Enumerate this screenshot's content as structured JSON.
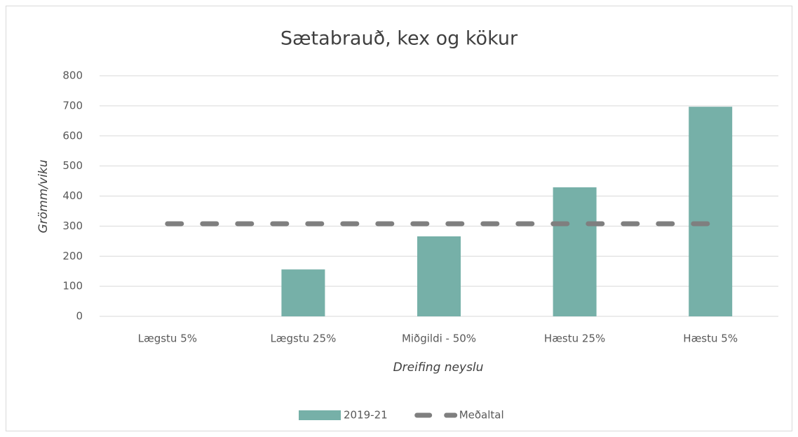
{
  "chart_data": {
    "type": "bar",
    "title": "Sætabrauð, kex og kökur",
    "y_axis_label": "Grömm/viku",
    "x_axis_label": "Dreifing neyslu",
    "categories": [
      "Lægstu 5%",
      "Lægstu 25%",
      "Miðgildi - 50%",
      "Hæstu 25%",
      "Hæstu 5%"
    ],
    "series": [
      {
        "name": "2019-21",
        "type": "bar",
        "color": "#76b0a8",
        "values": [
          0,
          156,
          266,
          429,
          697
        ]
      },
      {
        "name": "Meðaltal",
        "type": "line",
        "dashed": true,
        "color": "#7f7f7f",
        "values": [
          308,
          308,
          308,
          308,
          308
        ]
      }
    ],
    "ylim": [
      0,
      800
    ],
    "yticks": [
      0,
      100,
      200,
      300,
      400,
      500,
      600,
      700,
      800
    ],
    "grid": true,
    "legend": "bottom"
  }
}
